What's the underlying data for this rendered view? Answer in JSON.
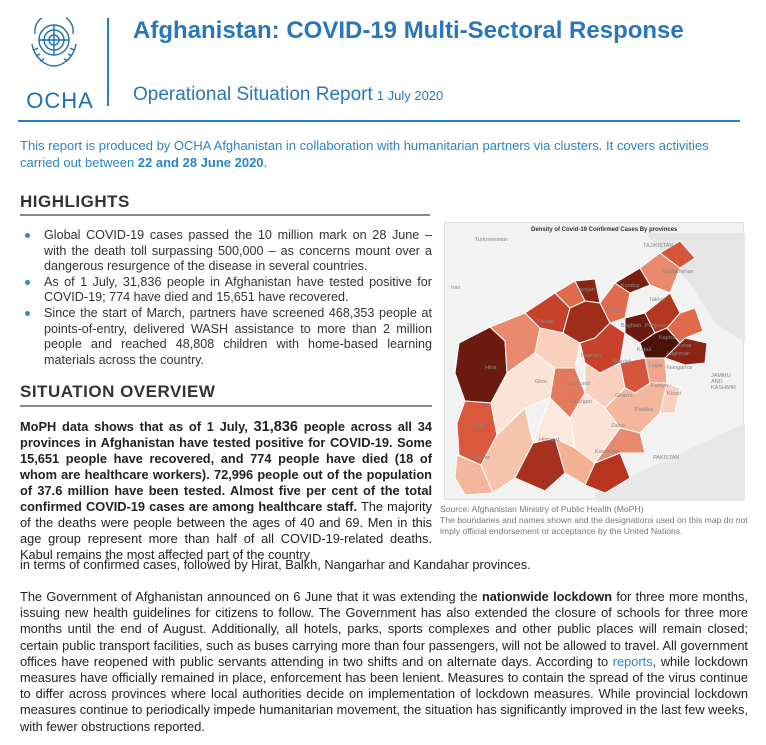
{
  "header": {
    "logo_text": "OCHA",
    "title": "Afghanistan: COVID-19 Multi-Sectoral Response",
    "subtitle": "Operational Situation Report",
    "date": "1 July 2020"
  },
  "intro": {
    "text_before": "This report is produced by OCHA Afghanistan in collaboration with humanitarian partners via clusters. It covers activities carried out between ",
    "dates": "22 and 28 June 2020",
    "text_after": "."
  },
  "highlights": {
    "heading": "HIGHLIGHTS",
    "items": [
      "Global COVID-19 cases passed the 10 million mark on 28 June – with the death toll surpassing 500,000 – as concerns mount over a dangerous resurgence of the disease in several countries.",
      "As of 1 July, 31,836 people in Afghanistan have tested positive for COVID-19; 774 have died and 15,651 have recovered.",
      "Since the start of March, partners have screened 468,353 people at points-of-entry, delivered WASH assistance to more than 2 million people and reached 48,808 children with home-based learning materials across the country."
    ]
  },
  "situation": {
    "heading": "SITUATION OVERVIEW",
    "bold_1": "MoPH data shows that as of 1 July, ",
    "bold_num": "31,836",
    "bold_2": " people across all 34 provinces in Afghanistan have tested positive for COVID-19. Some 15,651 people have recovered, and 774 people have died (18 of whom are healthcare workers). 72,996 people out of the population of 37.6 million have been tested. Almost five per cent of the total confirmed COVID-19 cases are among healthcare staff.",
    "normal": " The majority of the deaths were people between the ages of 40 and 69. Men in this age group represent more than half of all COVID-19-related deaths. Kabul remains the most affected part of the country",
    "continuation": "in terms of confirmed cases, followed by Hirat, Balkh, Nangarhar and Kandahar provinces."
  },
  "para2": {
    "t1": "The Government of Afghanistan announced on 6 June that it was extending the ",
    "bold": "nationwide lockdown",
    "t2": " for three more months, issuing new health guidelines for citizens to follow. The Government has also extended the closure of schools for three more months until the end of August. Additionally, all hotels, parks, sports complexes and other public places will remain closed; certain public transport facilities, such as buses carrying more than four passengers, will not be allowed to travel. All government offices have reopened with public servants attending in two shifts and on alternate days. According to ",
    "link": "reports",
    "t3": ", while lockdown measures have officially remained in place, enforcement has been lenient. Measures to contain the spread of the virus continue to differ across provinces where local authorities decide on implementation of lockdown measures. While provincial lockdown measures continue to periodically impede humanitarian movement, the situation has significantly improved in the last few weeks, with fewer obstructions reported."
  },
  "map": {
    "title": "Density of Covid-19 Confirmed Cases By provinces",
    "labels": [
      "Turkmenistan",
      "TAJIKISTAN",
      "Badakhshan",
      "Takhar",
      "Balkh",
      "Faryab",
      "Jawzjan",
      "Kunduz",
      "Baghlan",
      "Panjsher",
      "Kapisa",
      "Kabul",
      "Wardak",
      "Logar",
      "Kunar",
      "Laghman",
      "Nangarhar",
      "Paktya",
      "Khost",
      "Ghazni",
      "Paktika",
      "Bamyan",
      "Hirat",
      "Ghor",
      "Daykundi",
      "Uruzgan",
      "Zabul",
      "Farah",
      "Hilmand",
      "Kandahar",
      "Nimroz",
      "PAKISTAN",
      "Iran",
      "JAMMU AND KASHMIR"
    ],
    "source": "Source: Afghanistan Ministry of Public Health (MoPH)",
    "disclaimer": "The boundaries and names shown and the designations used on this map do not imply official endorsement or acceptance by the United Nations.",
    "colors": {
      "dark": "#6b1b10",
      "mid": "#c8412b",
      "light": "#f2b9a0",
      "pale": "#fbe3d6"
    }
  }
}
